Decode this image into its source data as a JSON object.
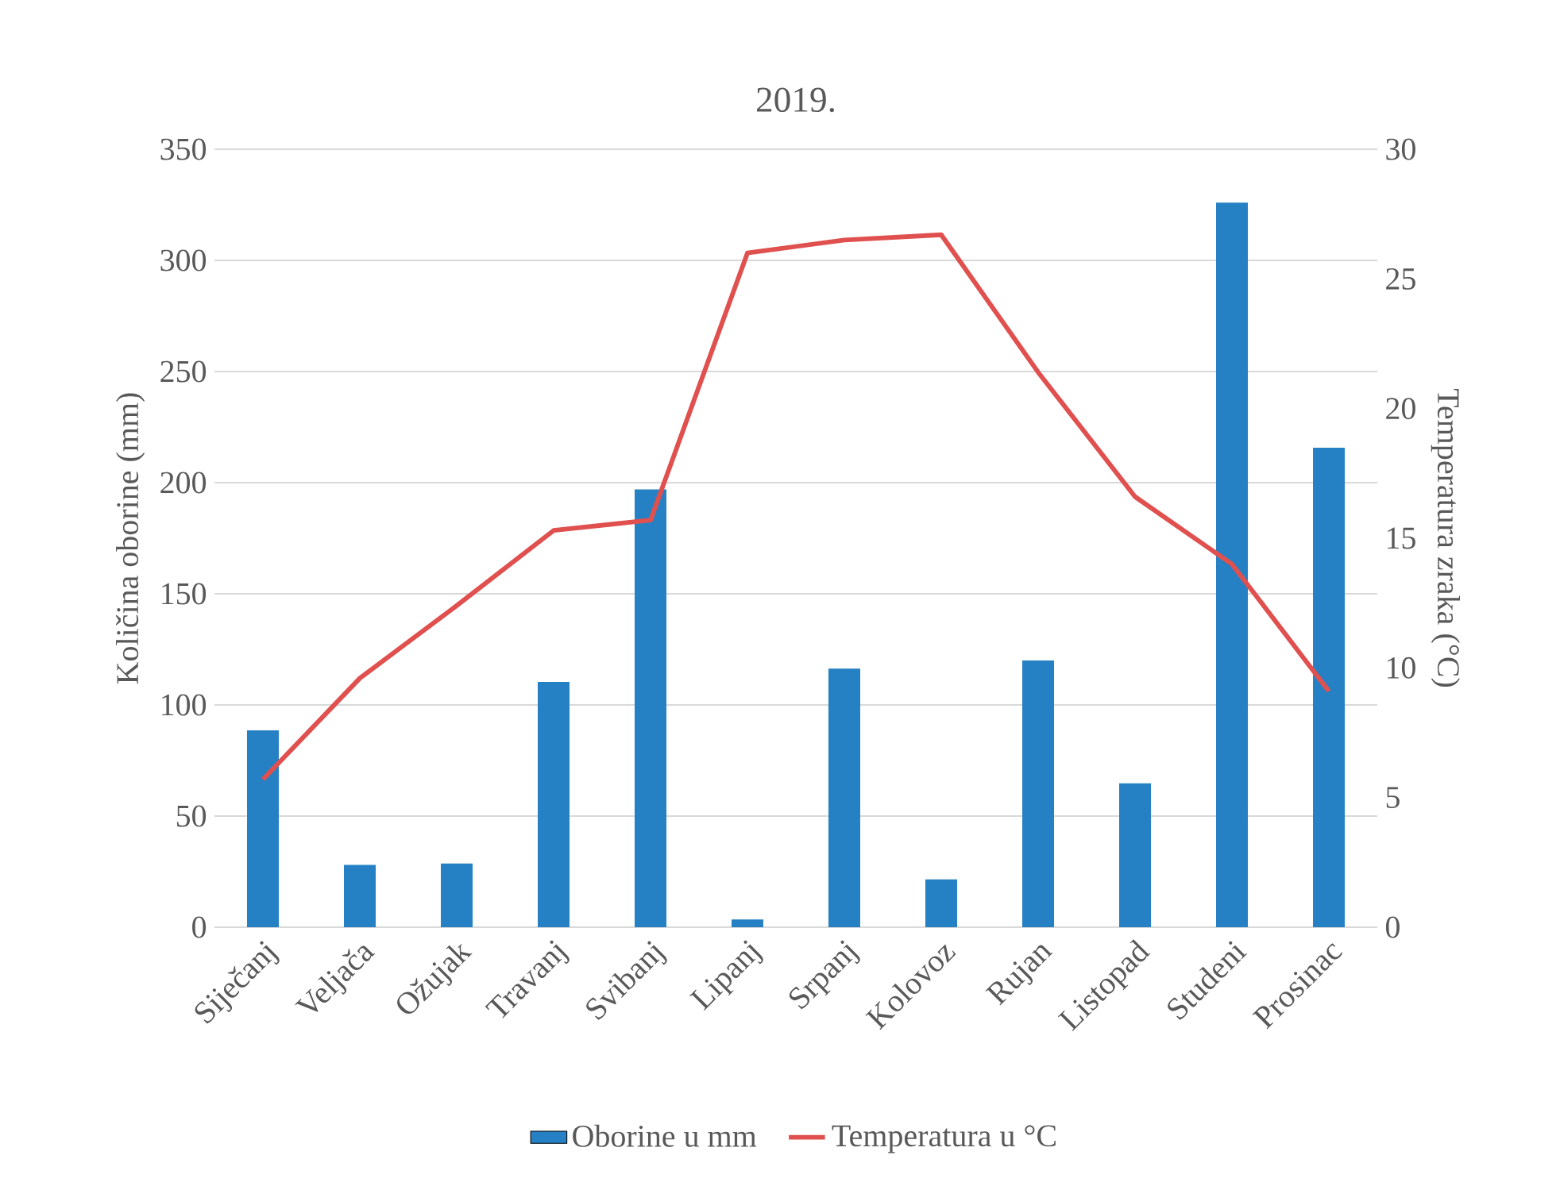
{
  "chart_data": {
    "type": "bar",
    "title": "2019.",
    "ylabel": "Količina oborine (mm)",
    "y2label": "Temperatura zraka (°C)",
    "categories": [
      "Siječanj",
      "Veljača",
      "Ožujak",
      "Travanj",
      "Svibanj",
      "Lipanj",
      "Srpanj",
      "Kolovoz",
      "Rujan",
      "Listopad",
      "Studeni",
      "Prosinac"
    ],
    "series": [
      {
        "name": "Oborine u mm",
        "color": "#2581c4",
        "values": [
          88.6,
          28,
          28.7,
          110.4,
          197,
          3.5,
          116.3,
          21.5,
          120,
          64.7,
          326,
          215.7
        ]
      },
      {
        "name": "Temperatura u °C",
        "type": "line",
        "axis": "y2",
        "color": "#e0504f",
        "values": [
          5.7,
          9.6,
          12.4,
          15.3,
          15.7,
          26.0,
          26.5,
          26.7,
          21.4,
          16.6,
          14.0,
          9.1
        ]
      }
    ],
    "ylim": [
      0,
      350
    ],
    "yticks": [
      0,
      50,
      100,
      150,
      200,
      250,
      300,
      350
    ],
    "y2lim": [
      0,
      30
    ],
    "y2ticks": [
      0,
      5,
      10,
      15,
      20,
      25,
      30
    ],
    "grid": "y",
    "legend": "bottom",
    "marker": "none"
  }
}
